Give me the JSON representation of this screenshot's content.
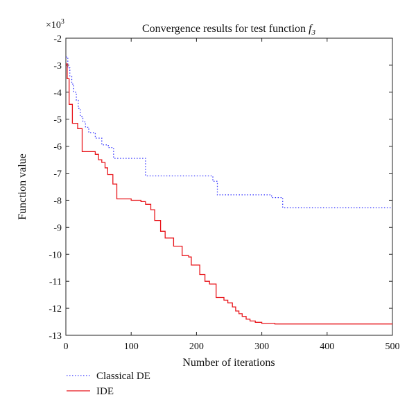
{
  "chart_data": {
    "type": "line",
    "title": "Convergence results for test function",
    "title_symbol": "f",
    "title_subscript": "3",
    "xlabel": "Number of iterations",
    "ylabel": "Function value",
    "y_multiplier": "×10",
    "y_multiplier_exp": "3",
    "xlim": [
      0,
      500
    ],
    "ylim": [
      -13,
      -2
    ],
    "x_ticks": [
      "0",
      "100",
      "200",
      "300",
      "400",
      "500"
    ],
    "y_ticks": [
      "-2",
      "-3",
      "-4",
      "-5",
      "-6",
      "-7",
      "-8",
      "-9",
      "-10",
      "-11",
      "-12",
      "-13"
    ],
    "grid": false,
    "legend_position": "bottom-left outside",
    "series": [
      {
        "name": "Classical DE",
        "color": "#3a3aff",
        "style": "dotted",
        "points": [
          [
            0,
            -2.7
          ],
          [
            3,
            -2.7
          ],
          [
            3,
            -3.1
          ],
          [
            6,
            -3.1
          ],
          [
            6,
            -3.4
          ],
          [
            9,
            -3.4
          ],
          [
            9,
            -3.7
          ],
          [
            12,
            -3.7
          ],
          [
            12,
            -4.0
          ],
          [
            16,
            -4.0
          ],
          [
            16,
            -4.3
          ],
          [
            19,
            -4.3
          ],
          [
            19,
            -4.6
          ],
          [
            22,
            -4.6
          ],
          [
            22,
            -4.9
          ],
          [
            26,
            -4.9
          ],
          [
            26,
            -5.1
          ],
          [
            30,
            -5.1
          ],
          [
            30,
            -5.3
          ],
          [
            35,
            -5.3
          ],
          [
            35,
            -5.5
          ],
          [
            45,
            -5.5
          ],
          [
            45,
            -5.7
          ],
          [
            55,
            -5.7
          ],
          [
            55,
            -5.95
          ],
          [
            65,
            -5.95
          ],
          [
            65,
            -6.05
          ],
          [
            73,
            -6.05
          ],
          [
            73,
            -6.45
          ],
          [
            122,
            -6.45
          ],
          [
            122,
            -7.1
          ],
          [
            225,
            -7.1
          ],
          [
            225,
            -7.3
          ],
          [
            232,
            -7.3
          ],
          [
            232,
            -7.8
          ],
          [
            315,
            -7.8
          ],
          [
            315,
            -7.9
          ],
          [
            332,
            -7.9
          ],
          [
            332,
            -8.28
          ],
          [
            500,
            -8.28
          ]
        ]
      },
      {
        "name": "IDE",
        "color": "#e8141a",
        "style": "solid",
        "points": [
          [
            0,
            -2.95
          ],
          [
            2,
            -2.95
          ],
          [
            2,
            -3.5
          ],
          [
            5,
            -3.5
          ],
          [
            5,
            -4.45
          ],
          [
            10,
            -4.45
          ],
          [
            10,
            -5.15
          ],
          [
            18,
            -5.15
          ],
          [
            18,
            -5.35
          ],
          [
            25,
            -5.35
          ],
          [
            25,
            -6.2
          ],
          [
            45,
            -6.2
          ],
          [
            45,
            -6.3
          ],
          [
            50,
            -6.3
          ],
          [
            50,
            -6.5
          ],
          [
            55,
            -6.5
          ],
          [
            55,
            -6.6
          ],
          [
            60,
            -6.6
          ],
          [
            60,
            -6.8
          ],
          [
            64,
            -6.8
          ],
          [
            64,
            -7.05
          ],
          [
            72,
            -7.05
          ],
          [
            72,
            -7.4
          ],
          [
            78,
            -7.4
          ],
          [
            78,
            -7.95
          ],
          [
            100,
            -7.95
          ],
          [
            100,
            -8.0
          ],
          [
            115,
            -8.0
          ],
          [
            115,
            -8.05
          ],
          [
            122,
            -8.05
          ],
          [
            122,
            -8.15
          ],
          [
            130,
            -8.15
          ],
          [
            130,
            -8.35
          ],
          [
            136,
            -8.35
          ],
          [
            136,
            -8.75
          ],
          [
            145,
            -8.75
          ],
          [
            145,
            -9.15
          ],
          [
            152,
            -9.15
          ],
          [
            152,
            -9.4
          ],
          [
            165,
            -9.4
          ],
          [
            165,
            -9.7
          ],
          [
            178,
            -9.7
          ],
          [
            178,
            -10.05
          ],
          [
            188,
            -10.05
          ],
          [
            188,
            -10.1
          ],
          [
            192,
            -10.1
          ],
          [
            192,
            -10.4
          ],
          [
            205,
            -10.4
          ],
          [
            205,
            -10.75
          ],
          [
            213,
            -10.75
          ],
          [
            213,
            -11.0
          ],
          [
            220,
            -11.0
          ],
          [
            220,
            -11.1
          ],
          [
            230,
            -11.1
          ],
          [
            230,
            -11.6
          ],
          [
            242,
            -11.6
          ],
          [
            242,
            -11.7
          ],
          [
            248,
            -11.7
          ],
          [
            248,
            -11.8
          ],
          [
            255,
            -11.8
          ],
          [
            255,
            -11.95
          ],
          [
            260,
            -11.95
          ],
          [
            260,
            -12.1
          ],
          [
            265,
            -12.1
          ],
          [
            265,
            -12.2
          ],
          [
            270,
            -12.2
          ],
          [
            270,
            -12.3
          ],
          [
            276,
            -12.3
          ],
          [
            276,
            -12.4
          ],
          [
            282,
            -12.4
          ],
          [
            282,
            -12.47
          ],
          [
            290,
            -12.47
          ],
          [
            290,
            -12.52
          ],
          [
            300,
            -12.52
          ],
          [
            300,
            -12.56
          ],
          [
            320,
            -12.56
          ],
          [
            320,
            -12.58
          ],
          [
            500,
            -12.58
          ]
        ]
      }
    ]
  }
}
